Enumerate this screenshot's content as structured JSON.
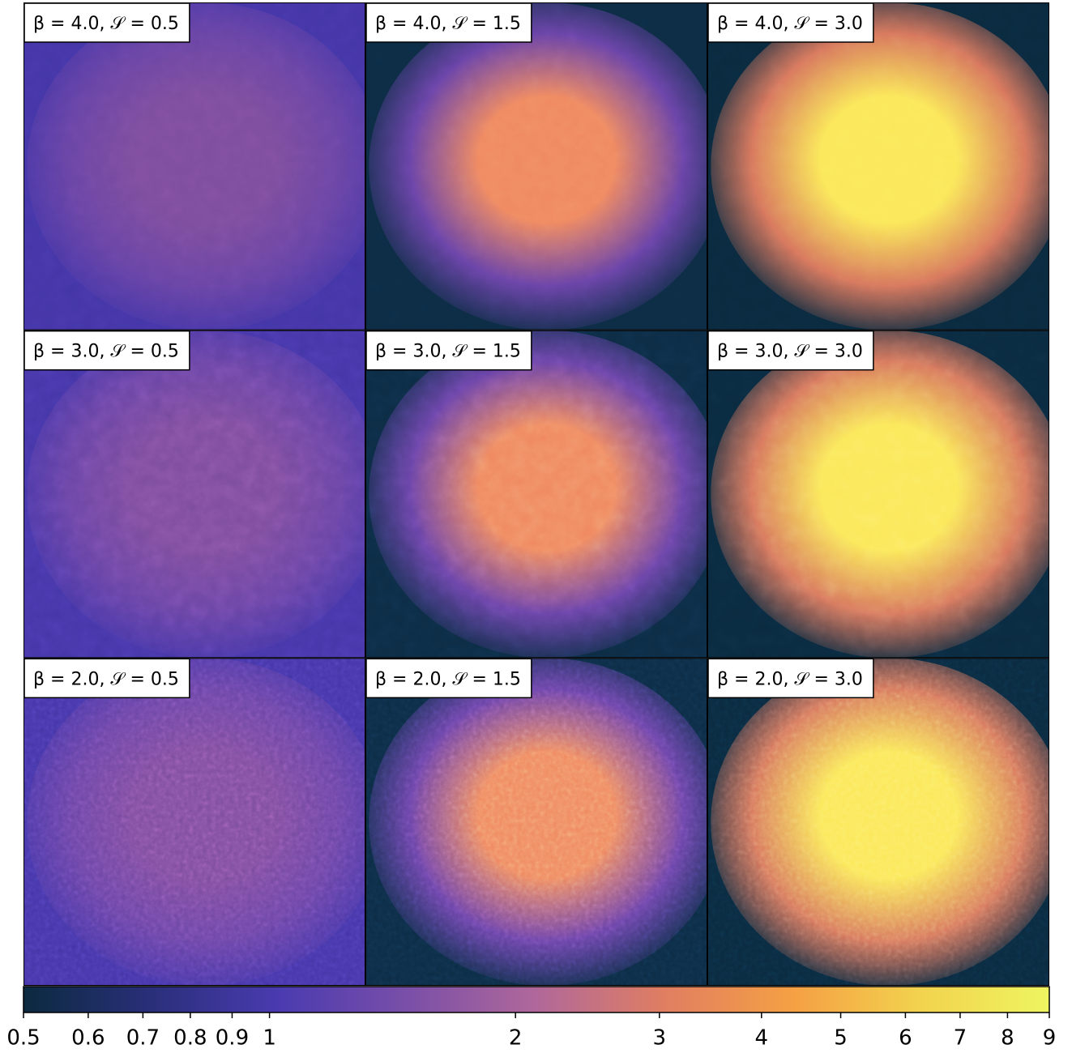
{
  "chart_data": {
    "type": "colorbar",
    "panel_labels": [
      "β = 4.0, 𝒮 = 0.5",
      "β = 4.0, 𝒮 = 1.5",
      "β = 4.0, 𝒮 = 3.0",
      "β = 3.0, 𝒮 = 0.5",
      "β = 3.0, 𝒮 = 1.5",
      "β = 3.0, 𝒮 = 3.0",
      "β = 2.0, 𝒮 = 0.5",
      "β = 2.0, 𝒮 = 1.5",
      "β = 2.0, 𝒮 = 3.0"
    ],
    "log": true,
    "xlim": [
      0.5,
      9
    ],
    "xticks": [
      0.5,
      0.6,
      0.7,
      0.8,
      0.9,
      1,
      2,
      3,
      4,
      5,
      6,
      7,
      8,
      9
    ],
    "colormap": [
      "#0b2a3f",
      "#2a2f7a",
      "#4a3bb0",
      "#7a4fa8",
      "#b0689a",
      "#e07e62",
      "#f5a044",
      "#f2d34e",
      "#eef560"
    ]
  }
}
